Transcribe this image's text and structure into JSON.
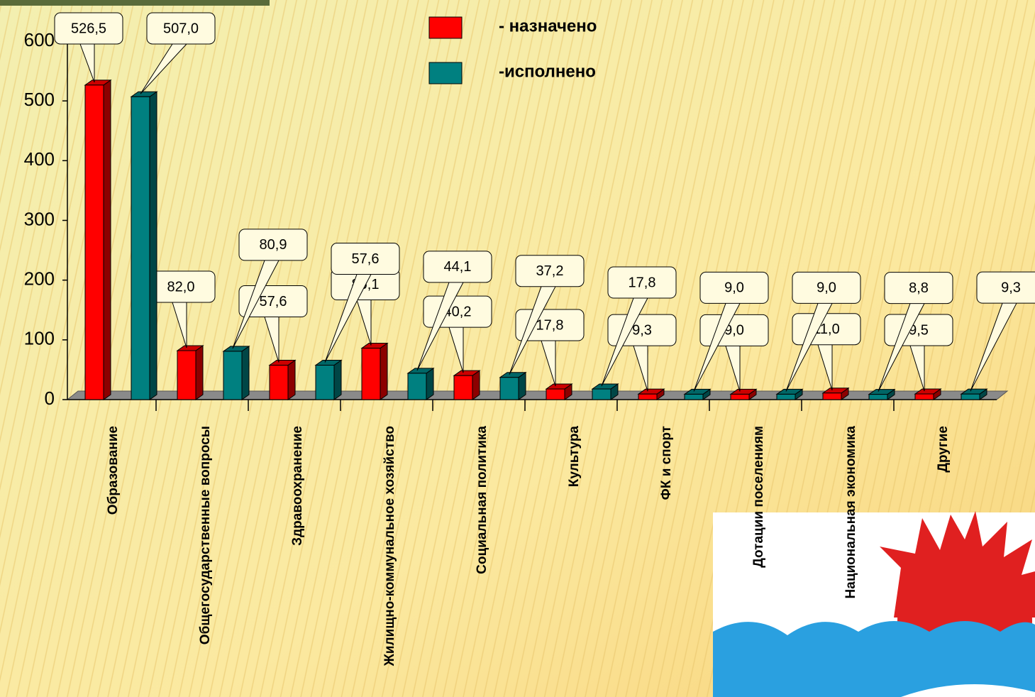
{
  "chart_data": {
    "type": "bar",
    "categories": [
      "Образование",
      "Общегосударственные вопросы",
      "Здравоохранение",
      "Жилищно-коммунальное хозяйство",
      "Социальная политика",
      "Культура",
      "ФК и спорт",
      "Дотации поселениям",
      "Национальная экономика",
      "Другие"
    ],
    "series": [
      {
        "name": "- назначено",
        "color": "#ff0000",
        "values": [
          526.5,
          82.0,
          57.6,
          86.1,
          40.2,
          17.8,
          9.3,
          9.0,
          11.0,
          9.5
        ],
        "value_labels": [
          "526,5",
          "82,0",
          "57,6",
          "86,1",
          "40,2",
          "17,8",
          "9,3",
          "9,0",
          "11,0",
          "9,5"
        ]
      },
      {
        "name": "-исполнено",
        "color": "#008080",
        "values": [
          507.0,
          80.9,
          57.6,
          44.1,
          37.2,
          17.8,
          9.0,
          9.0,
          8.8,
          9.3
        ],
        "value_labels": [
          "507,0",
          "80,9",
          "57,6",
          "44,1",
          "37,2",
          "17,8",
          "9,0",
          "9,0",
          "8,8",
          "9,3"
        ]
      }
    ],
    "ylim": [
      0,
      600
    ],
    "yticks": [
      0,
      100,
      200,
      300,
      400,
      500,
      600
    ],
    "legend": "top"
  }
}
